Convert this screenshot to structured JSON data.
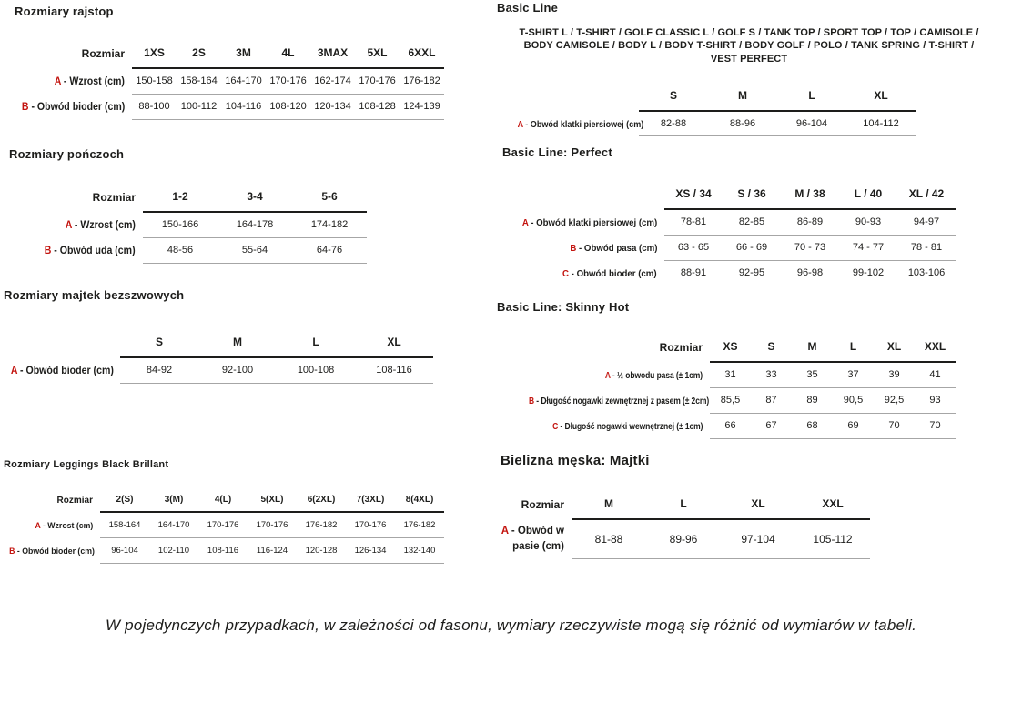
{
  "accent_color": "#c3140f",
  "sections": [
    {
      "id": "rajstopy",
      "title": "Rozmiary rajstop",
      "corner_label": "Rozmiar",
      "columns": [
        "1XS",
        "2S",
        "3M",
        "4L",
        "3MAX",
        "5XL",
        "6XXL"
      ],
      "rows": [
        {
          "prefix": "A",
          "label": "- Wzrost (cm)",
          "values": [
            "150-158",
            "158-164",
            "164-170",
            "170-176",
            "162-174",
            "170-176",
            "176-182"
          ]
        },
        {
          "prefix": "B",
          "label": "- Obwód bioder (cm)",
          "values": [
            "88-100",
            "100-112",
            "104-116",
            "108-120",
            "120-134",
            "108-128",
            "124-139"
          ]
        }
      ]
    },
    {
      "id": "ponczochy",
      "title": "Rozmiary pończoch",
      "corner_label": "Rozmiar",
      "columns": [
        "1-2",
        "3-4",
        "5-6"
      ],
      "rows": [
        {
          "prefix": "A",
          "label": "- Wzrost (cm)",
          "values": [
            "150-166",
            "164-178",
            "174-182"
          ]
        },
        {
          "prefix": "B",
          "label": "- Obwód uda (cm)",
          "values": [
            "48-56",
            "55-64",
            "64-76"
          ]
        }
      ]
    },
    {
      "id": "majtki-bezszwowe",
      "title": "Rozmiary majtek bezszwowych",
      "corner_label": "",
      "columns": [
        "S",
        "M",
        "L",
        "XL"
      ],
      "rows": [
        {
          "prefix": "A",
          "label": "- Obwód bioder (cm)",
          "values": [
            "84-92",
            "92-100",
            "100-108",
            "108-116"
          ]
        }
      ]
    },
    {
      "id": "leggings-black-brillant",
      "title": "Rozmiary Leggings Black Brillant",
      "corner_label": "Rozmiar",
      "columns": [
        "2(S)",
        "3(M)",
        "4(L)",
        "5(XL)",
        "6(2XL)",
        "7(3XL)",
        "8(4XL)"
      ],
      "rows": [
        {
          "prefix": "A",
          "label": "- Wzrost (cm)",
          "values": [
            "158-164",
            "164-170",
            "170-176",
            "170-176",
            "176-182",
            "170-176",
            "176-182"
          ]
        },
        {
          "prefix": "B",
          "label": "- Obwód bioder (cm)",
          "values": [
            "96-104",
            "102-110",
            "108-116",
            "116-124",
            "120-128",
            "126-134",
            "132-140"
          ]
        }
      ]
    },
    {
      "id": "basic-line",
      "title": "Basic Line",
      "subtitle": "T-SHIRT L / T-SHIRT / GOLF CLASSIC L / GOLF S / TANK TOP / SPORT TOP / TOP / CAMISOLE / BODY CAMISOLE / BODY L / BODY T-SHIRT / BODY GOLF / POLO / TANK SPRING / T-SHIRT / VEST PERFECT",
      "corner_label": "",
      "columns": [
        "S",
        "M",
        "L",
        "XL"
      ],
      "rows": [
        {
          "prefix": "A",
          "label": "- Obwód klatki piersiowej (cm)",
          "values": [
            "82-88",
            "88-96",
            "96-104",
            "104-112"
          ]
        }
      ]
    },
    {
      "id": "basic-line-perfect",
      "title": "Basic Line: Perfect",
      "corner_label": "",
      "columns": [
        "XS / 34",
        "S / 36",
        "M / 38",
        "L / 40",
        "XL / 42"
      ],
      "rows": [
        {
          "prefix": "A",
          "label": "- Obwód klatki piersiowej (cm)",
          "values": [
            "78-81",
            "82-85",
            "86-89",
            "90-93",
            "94-97"
          ]
        },
        {
          "prefix": "B",
          "label": "- Obwód pasa (cm)",
          "values": [
            "63 - 65",
            "66 - 69",
            "70 - 73",
            "74 - 77",
            "78 - 81"
          ]
        },
        {
          "prefix": "C",
          "label": "- Obwód bioder (cm)",
          "values": [
            "88-91",
            "92-95",
            "96-98",
            "99-102",
            "103-106"
          ]
        }
      ]
    },
    {
      "id": "basic-line-skinny-hot",
      "title": "Basic Line: Skinny Hot",
      "corner_label": "Rozmiar",
      "columns": [
        "XS",
        "S",
        "M",
        "L",
        "XL",
        "XXL"
      ],
      "rows": [
        {
          "prefix": "A",
          "label": "- ½ obwodu pasa (± 1cm)",
          "values": [
            "31",
            "33",
            "35",
            "37",
            "39",
            "41"
          ]
        },
        {
          "prefix": "B",
          "label": "- Długość nogawki zewnętrznej z pasem (± 2cm)",
          "values": [
            "85,5",
            "87",
            "89",
            "90,5",
            "92,5",
            "93"
          ]
        },
        {
          "prefix": "C",
          "label": "- Długość nogawki wewnętrznej (± 1cm)",
          "values": [
            "66",
            "67",
            "68",
            "69",
            "70",
            "70"
          ]
        }
      ]
    },
    {
      "id": "bielizna-meska-majtki",
      "title": "Bielizna męska: Majtki",
      "corner_label": "Rozmiar",
      "columns": [
        "M",
        "L",
        "XL",
        "XXL"
      ],
      "rows": [
        {
          "prefix": "A",
          "label": "- Obwód w pasie (cm)",
          "values": [
            "81-88",
            "89-96",
            "97-104",
            "105-112"
          ]
        }
      ]
    }
  ],
  "footer": {
    "note": "W pojedynczych przypadkach, w zależności od fasonu, wymiary rzeczywiste mogą się różnić od wymiarów w tabeli."
  }
}
